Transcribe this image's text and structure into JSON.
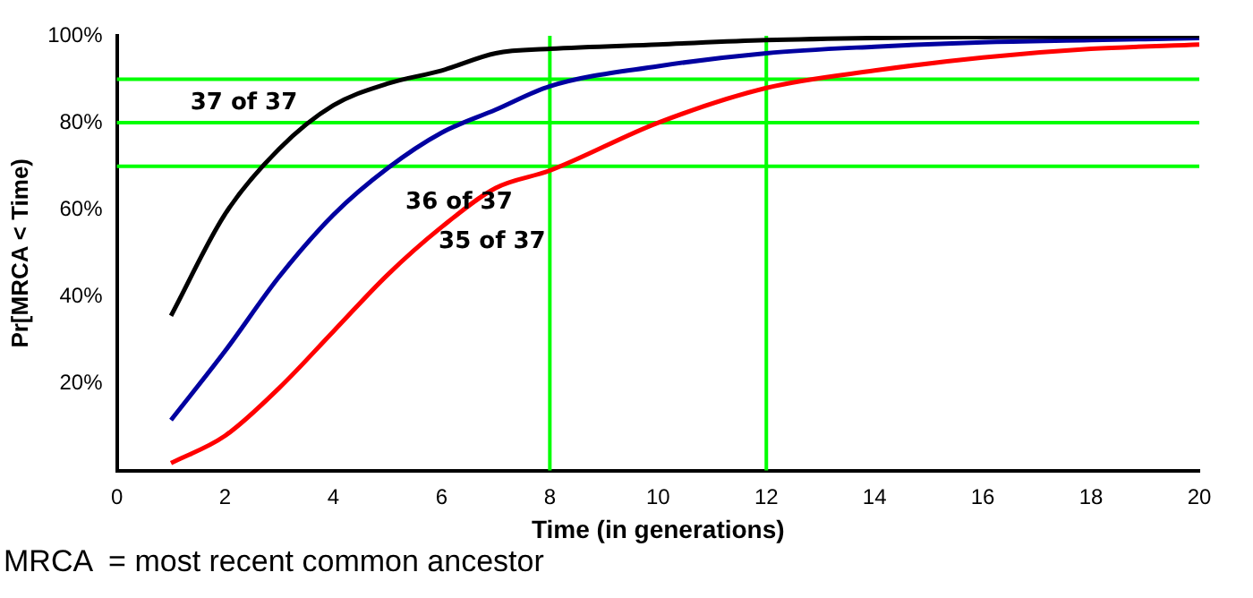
{
  "chart_data": {
    "type": "line",
    "xlabel": "Time (in generations)",
    "ylabel": "Pr[MRCA < Time)",
    "x": [
      1,
      2,
      3,
      4,
      5,
      6,
      7,
      8,
      10,
      12,
      14,
      16,
      18,
      20
    ],
    "series": [
      {
        "color": "#000000",
        "values": [
          35.6,
          59,
          74,
          84,
          89,
          92,
          96,
          97,
          98,
          99,
          99.5,
          99.7,
          99.8,
          100
        ]
      },
      {
        "color": "#0000a0",
        "values": [
          11.6,
          27.5,
          44.6,
          58.8,
          69.5,
          77.7,
          83,
          88.4,
          93,
          96,
          97.5,
          98.5,
          99,
          99.5
        ]
      },
      {
        "color": "#ff0000",
        "values": [
          1.7,
          8,
          19,
          32,
          45,
          56,
          65,
          69,
          80,
          88,
          92,
          95,
          97,
          98
        ]
      }
    ],
    "xlim": [
      0,
      20
    ],
    "xticks": [
      0,
      2,
      4,
      6,
      8,
      10,
      12,
      14,
      16,
      18,
      20
    ],
    "ylim": [
      0,
      100
    ],
    "yticks": [
      {
        "value": 0,
        "label": null
      },
      {
        "value": 20,
        "label": "20%"
      },
      {
        "value": 40,
        "label": "40%"
      },
      {
        "value": 60,
        "label": "60%"
      },
      {
        "value": 80,
        "label": "80%"
      },
      {
        "value": 100,
        "label": "100%"
      }
    ],
    "grid": false,
    "legend": false,
    "marker": "none",
    "line_style": "solid",
    "ref_lines": [
      {
        "axis": "y",
        "value": 90,
        "color": "#00ff00"
      },
      {
        "axis": "y",
        "value": 80,
        "color": "#00ff00"
      },
      {
        "axis": "y",
        "value": 70,
        "color": "#00ff00"
      },
      {
        "axis": "x",
        "value": 8,
        "color": "#00ff00"
      },
      {
        "axis": "x",
        "value": 12,
        "color": "#00ff00"
      }
    ],
    "annotations": [
      {
        "text": "37 of 37",
        "x": 4,
        "y": 84
      },
      {
        "text": "36 of 37",
        "x": 5,
        "y": 69.5
      },
      {
        "text": "35 of 37",
        "x": 7,
        "y": 65
      },
      "MRCA  = most recent common ancestor"
    ]
  }
}
